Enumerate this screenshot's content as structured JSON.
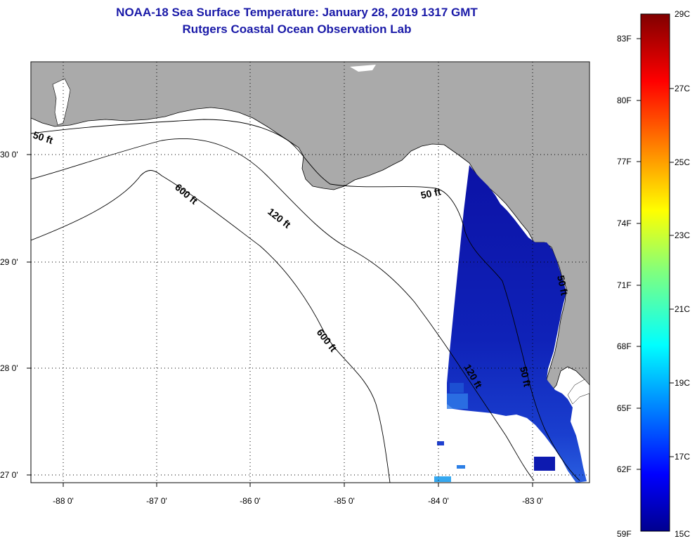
{
  "header": {
    "title": "NOAA-18 Sea Surface Temperature:  January 28, 2019 1317 GMT",
    "subtitle": "Rutgers Coastal Ocean Observation Lab"
  },
  "map": {
    "region": "Eastern Gulf of Mexico / Florida Big Bend",
    "lon_range": [
      -88.35,
      -82.45
    ],
    "lat_range": [
      26.95,
      30.85
    ],
    "lon_ticks": [
      {
        "value": -88,
        "label": "-88 0'"
      },
      {
        "value": -87,
        "label": "-87 0'"
      },
      {
        "value": -86,
        "label": "-86 0'"
      },
      {
        "value": -85,
        "label": "-85 0'"
      },
      {
        "value": -84,
        "label": "-84 0'"
      },
      {
        "value": -83,
        "label": "-83 0'"
      }
    ],
    "lat_ticks": [
      {
        "value": 30,
        "label": "30 0'"
      },
      {
        "value": 29,
        "label": "29 0'"
      },
      {
        "value": 28,
        "label": "28 0'"
      },
      {
        "value": 27,
        "label": "27 0'"
      }
    ],
    "contour_labels": [
      {
        "text": "50 ft"
      },
      {
        "text": "600 ft"
      },
      {
        "text": "120 ft"
      },
      {
        "text": "50 ft"
      },
      {
        "text": "600 ft"
      },
      {
        "text": "120 ft"
      },
      {
        "text": "50 ft"
      },
      {
        "text": "50 ft"
      }
    ],
    "colors": {
      "land": "#aaaaaa",
      "ocean_no_data": "#ffffff",
      "sst_cold": "#0a14a8",
      "grid": "#000000"
    }
  },
  "colorbar": {
    "min_f": 59,
    "max_f": 84,
    "fahrenheit_labels": [
      "83F",
      "80F",
      "77F",
      "74F",
      "71F",
      "68F",
      "65F",
      "62F",
      "59F"
    ],
    "celsius_labels": [
      "29C",
      "27C",
      "25C",
      "23C",
      "21C",
      "19C",
      "17C",
      "15C"
    ],
    "colormap": "jet"
  }
}
